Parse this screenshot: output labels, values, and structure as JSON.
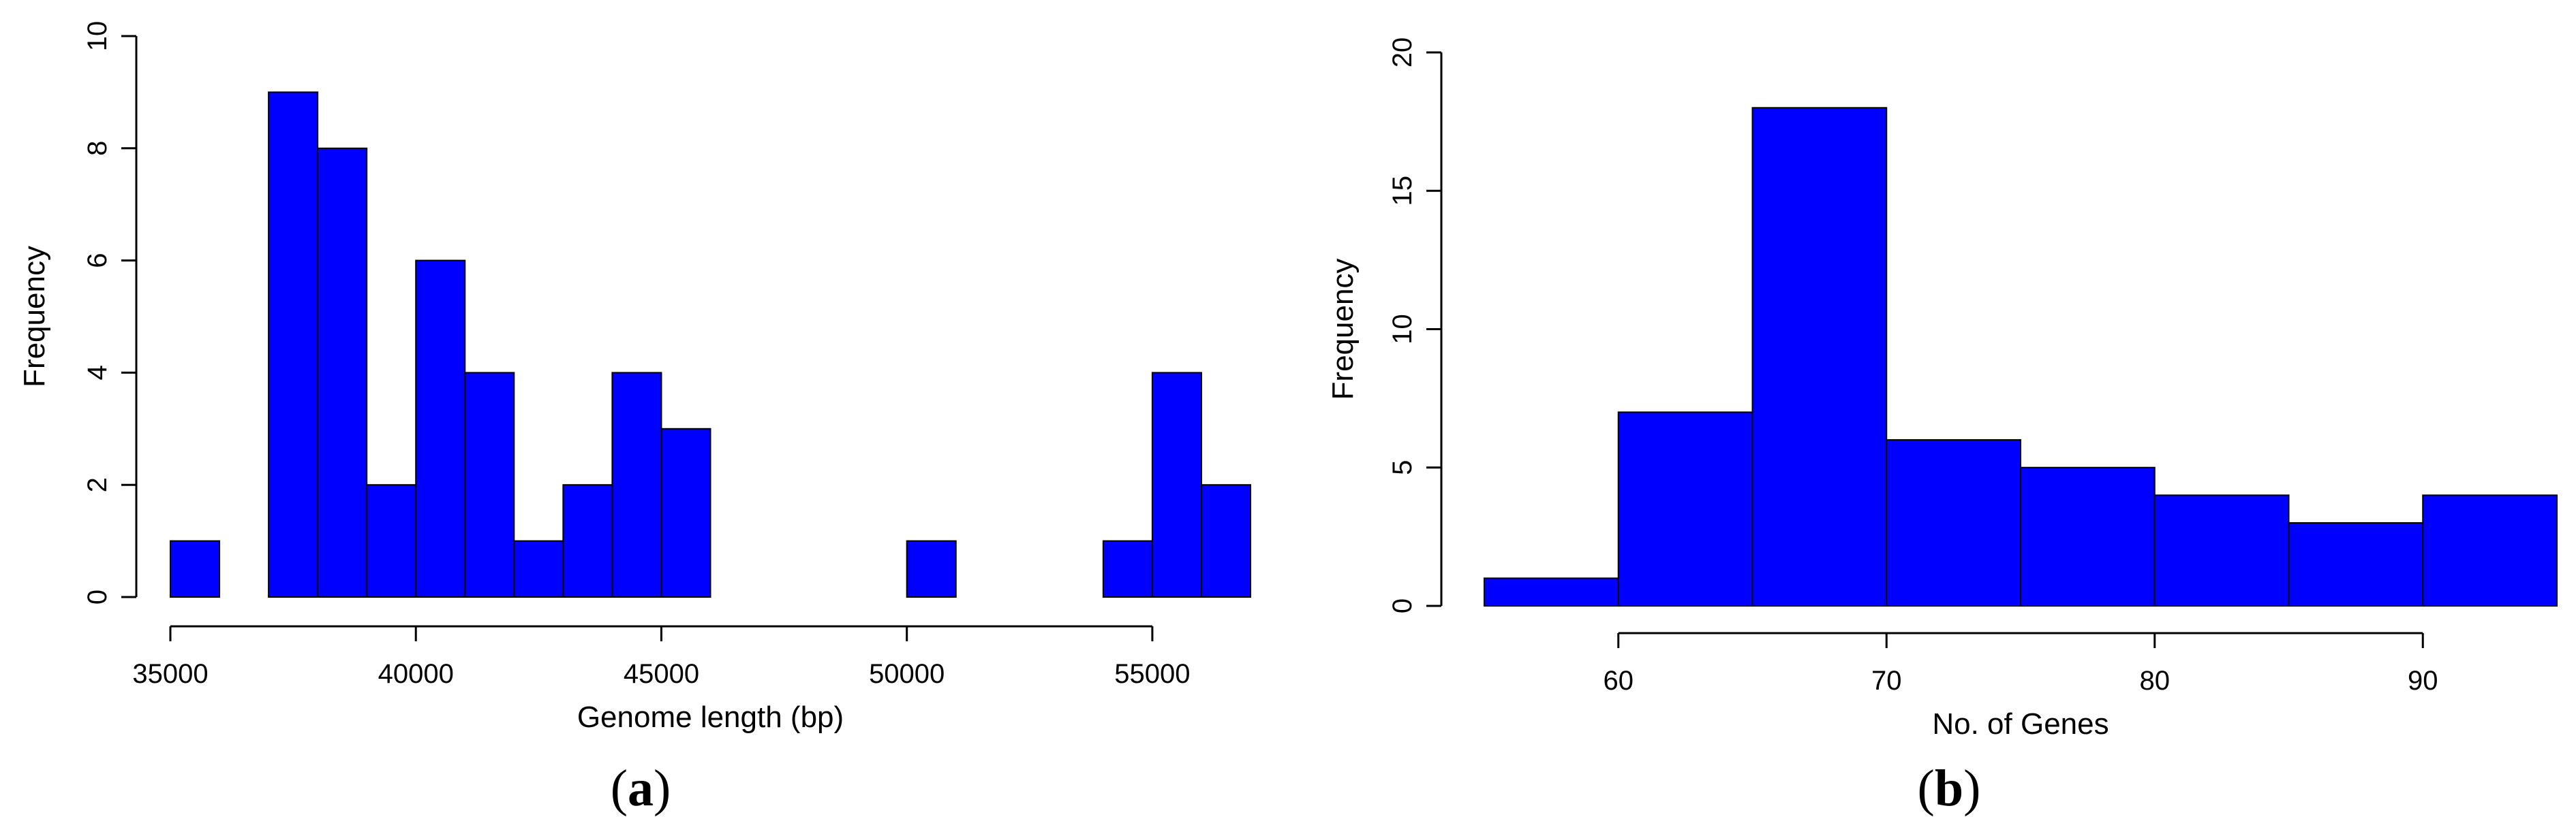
{
  "colors": {
    "bar_fill": "#0000ff",
    "bar_stroke": "#000000"
  },
  "chart_data": [
    {
      "type": "bar",
      "panel_label": "a",
      "title": "",
      "xlabel": "Genome length (bp)",
      "ylabel": "Frequency",
      "bin_width": 1000,
      "bins": [
        [
          35000,
          1
        ],
        [
          36000,
          0
        ],
        [
          37000,
          9
        ],
        [
          38000,
          8
        ],
        [
          39000,
          2
        ],
        [
          40000,
          6
        ],
        [
          41000,
          4
        ],
        [
          42000,
          1
        ],
        [
          43000,
          2
        ],
        [
          44000,
          4
        ],
        [
          45000,
          3
        ],
        [
          46000,
          0
        ],
        [
          47000,
          0
        ],
        [
          48000,
          0
        ],
        [
          49000,
          0
        ],
        [
          50000,
          1
        ],
        [
          51000,
          0
        ],
        [
          52000,
          0
        ],
        [
          53000,
          0
        ],
        [
          54000,
          1
        ],
        [
          55000,
          4
        ],
        [
          56000,
          2
        ]
      ],
      "xlim": [
        35000,
        57000
      ],
      "ylim": [
        0,
        10
      ],
      "xticks": [
        35000,
        40000,
        45000,
        50000,
        55000
      ],
      "yticks": [
        0,
        2,
        4,
        6,
        8,
        10
      ],
      "grid": false
    },
    {
      "type": "bar",
      "panel_label": "b",
      "title": "",
      "xlabel": "No. of Genes",
      "ylabel": "Frequency",
      "bin_width": 5,
      "bins": [
        [
          55,
          1
        ],
        [
          60,
          7
        ],
        [
          65,
          18
        ],
        [
          70,
          6
        ],
        [
          75,
          5
        ],
        [
          80,
          4
        ],
        [
          85,
          3
        ],
        [
          90,
          4
        ]
      ],
      "xlim": [
        55,
        95
      ],
      "ylim": [
        0,
        20
      ],
      "xticks": [
        60,
        70,
        80,
        90
      ],
      "yticks": [
        0,
        5,
        10,
        15,
        20
      ],
      "grid": false
    }
  ]
}
